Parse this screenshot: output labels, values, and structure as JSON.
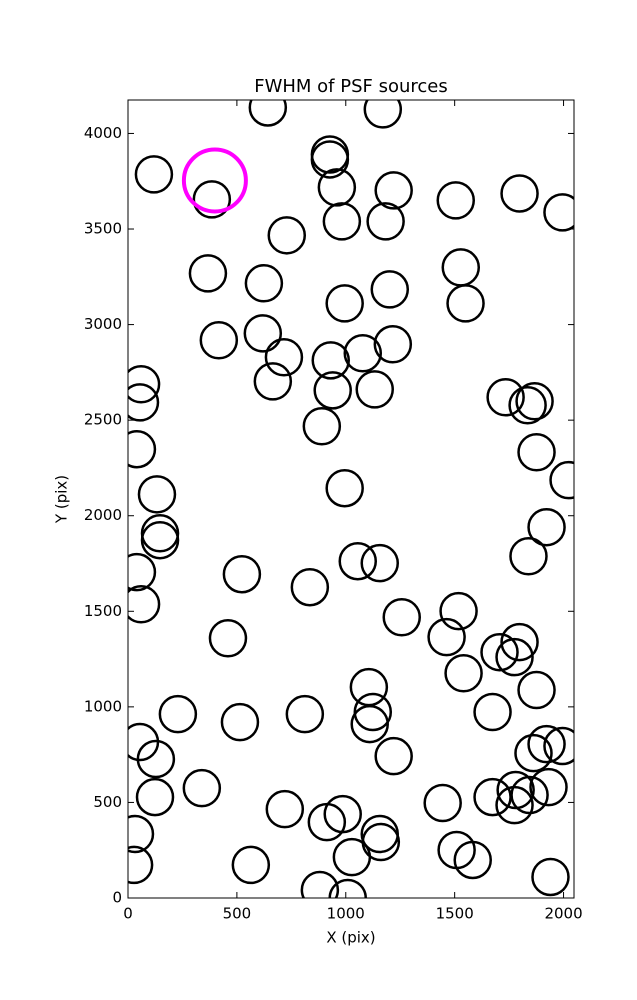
{
  "chart_data": {
    "type": "scatter",
    "title": "FWHM of PSF sources",
    "xlabel": "X (pix)",
    "ylabel": "Y (pix)",
    "xlim": [
      0,
      2048
    ],
    "ylim": [
      0,
      4175
    ],
    "xticks": [
      0,
      500,
      1000,
      1500,
      2000
    ],
    "yticks": [
      0,
      500,
      1000,
      1500,
      2000,
      2500,
      3000,
      3500,
      4000
    ],
    "series": [
      {
        "color": "#000000",
        "marker": "open-circle",
        "marker_size": 18,
        "linewidth": 2.5,
        "x": [
          642,
          1170,
          119,
          927,
          927,
          959,
          1220,
          385,
          1505,
          1798,
          1995,
          982,
          1183,
          729,
          367,
          624,
          1528,
          1550,
          995,
          1202,
          417,
          619,
          716,
          931,
          1078,
          1216,
          665,
          940,
          1133,
          60,
          55,
          1734,
          1867,
          1835,
          890,
          41,
          1876,
          2023,
          995,
          133,
          147,
          147,
          1922,
          1839,
          1055,
          1156,
          41,
          523,
          835,
          60,
          1257,
          1518,
          459,
          1463,
          1541,
          1706,
          1798,
          1775,
          1876,
          1106,
          229,
          812,
          1124,
          1110,
          514,
          1674,
          55,
          128,
          1220,
          1862,
          1922,
          1995,
          339,
          124,
          720,
          1445,
          1674,
          1780,
          1844,
          1931,
          1775,
          986,
          913,
          1156,
          1161,
          32,
          1509,
          1583,
          1028,
          28,
          564,
          1940,
          881,
          1009
        ],
        "y": [
          4136,
          4126,
          3786,
          3890,
          3864,
          3718,
          3702,
          3655,
          3650,
          3686,
          3587,
          3540,
          3540,
          3467,
          3268,
          3216,
          3299,
          3111,
          3111,
          3184,
          2918,
          2954,
          2829,
          2813,
          2850,
          2897,
          2703,
          2656,
          2661,
          2688,
          2593,
          2620,
          2599,
          2578,
          2468,
          2348,
          2332,
          2186,
          2144,
          2112,
          1908,
          1872,
          1940,
          1788,
          1762,
          1752,
          1705,
          1694,
          1626,
          1537,
          1469,
          1501,
          1359,
          1365,
          1176,
          1286,
          1339,
          1260,
          1088,
          1103,
          962,
          962,
          973,
          910,
          920,
          973,
          816,
          727,
          742,
          758,
          805,
          795,
          575,
          528,
          465,
          497,
          528,
          565,
          539,
          580,
          486,
          439,
          397,
          335,
          293,
          335,
          251,
          199,
          214,
          173,
          173,
          110,
          42,
          0
        ]
      },
      {
        "color": "#ff00ff",
        "marker": "open-circle",
        "marker_size": 31,
        "linewidth": 4,
        "x": [
          399
        ],
        "y": [
          3754
        ]
      }
    ]
  }
}
